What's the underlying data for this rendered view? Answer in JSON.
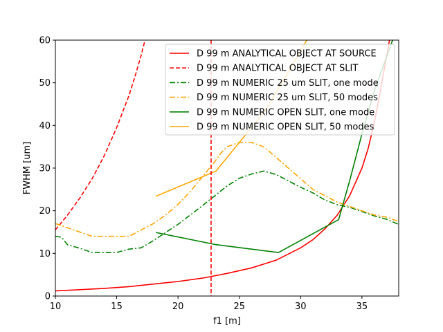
{
  "chart_data": {
    "type": "line",
    "xlabel": "f1 [m]",
    "ylabel": "FWHM [um]",
    "xlim": [
      10,
      38
    ],
    "ylim": [
      0,
      60
    ],
    "xticks": [
      10,
      15,
      20,
      25,
      30,
      35
    ],
    "yticks": [
      0,
      10,
      20,
      30,
      40,
      50,
      60
    ],
    "grid": false,
    "legend_position": "top-right",
    "vline": {
      "x": 22.7,
      "color": "#ff0000",
      "style": "dashed"
    },
    "series": [
      {
        "name": "D 99 m ANALYTICAL OBJECT AT SOURCE",
        "color": "#ff0000",
        "style": "solid",
        "x": [
          10,
          12,
          14,
          16,
          18,
          20,
          22,
          24,
          26,
          28,
          30,
          31,
          32,
          33,
          34,
          35,
          35.5,
          36,
          36.5,
          37,
          37.5
        ],
        "y": [
          1.2,
          1.5,
          1.8,
          2.2,
          2.8,
          3.4,
          4.2,
          5.3,
          6.6,
          8.4,
          11.3,
          13.2,
          15.8,
          19.0,
          23.5,
          30.0,
          34.5,
          40.5,
          48.0,
          56.0,
          64.0
        ]
      },
      {
        "name": "D 99 m ANALYTICAL OBJECT AT SLIT",
        "color": "#ff0000",
        "style": "dashed",
        "x": [
          10,
          11,
          12,
          13,
          14,
          15,
          16,
          16.5,
          17,
          17.4
        ],
        "y": [
          15.5,
          19.0,
          23.0,
          27.5,
          33.0,
          39.5,
          47.0,
          51.5,
          56.5,
          61.0
        ]
      },
      {
        "name": "D 99 m NUMERIC 25 um SLIT, one mode",
        "color": "#008000",
        "style": "dashdot",
        "x": [
          10,
          10.5,
          11,
          12,
          13,
          14,
          15,
          16,
          17,
          18,
          19,
          20,
          21,
          22,
          23,
          24,
          25,
          26,
          27,
          28,
          29,
          30,
          31,
          32,
          33,
          34,
          35,
          36,
          37,
          38
        ],
        "y": [
          14.0,
          13.8,
          12.0,
          11.2,
          10.2,
          10.2,
          10.2,
          11.0,
          11.3,
          13.0,
          14.9,
          16.8,
          19.0,
          21.2,
          23.5,
          25.8,
          27.6,
          28.6,
          29.3,
          28.5,
          27.0,
          25.5,
          24.2,
          22.5,
          21.4,
          20.8,
          19.8,
          18.8,
          18.0,
          16.8
        ]
      },
      {
        "name": "D 99 m NUMERIC 25 um SLIT, 50 modes",
        "color": "#ffa500",
        "style": "dashdot",
        "x": [
          10,
          11,
          12,
          13,
          14,
          15,
          16,
          17,
          18,
          19,
          20,
          21,
          22,
          23,
          23.5,
          24,
          25,
          26,
          27,
          28,
          29,
          30,
          31,
          32,
          33,
          34,
          35,
          36,
          37,
          38
        ],
        "y": [
          17.0,
          16.0,
          15.0,
          14.0,
          14.0,
          14.0,
          14.0,
          15.5,
          17.0,
          19.0,
          21.5,
          24.5,
          28.0,
          31.5,
          33.5,
          35.0,
          36.0,
          36.0,
          35.0,
          32.5,
          30.0,
          27.5,
          25.0,
          23.5,
          22.0,
          21.0,
          20.0,
          19.0,
          18.5,
          17.5
        ]
      },
      {
        "name": "D 99 m NUMERIC OPEN SLIT, one mode",
        "color": "#008000",
        "style": "solid",
        "x": [
          18.2,
          23.0,
          28.2,
          33.1,
          34.0,
          35.0,
          36.0,
          37.0,
          38.0
        ],
        "y": [
          14.9,
          12.1,
          10.2,
          17.9,
          27.0,
          38.0,
          48.0,
          56.0,
          64.0
        ]
      },
      {
        "name": "D 99 m NUMERIC OPEN SLIT, 50 modes",
        "color": "#ffa500",
        "style": "solid",
        "x": [
          18.2,
          23.1,
          25.0,
          27.0,
          28.5,
          30.0,
          30.7
        ],
        "y": [
          23.4,
          29.3,
          36.0,
          43.0,
          50.0,
          57.5,
          61.0
        ]
      }
    ]
  }
}
